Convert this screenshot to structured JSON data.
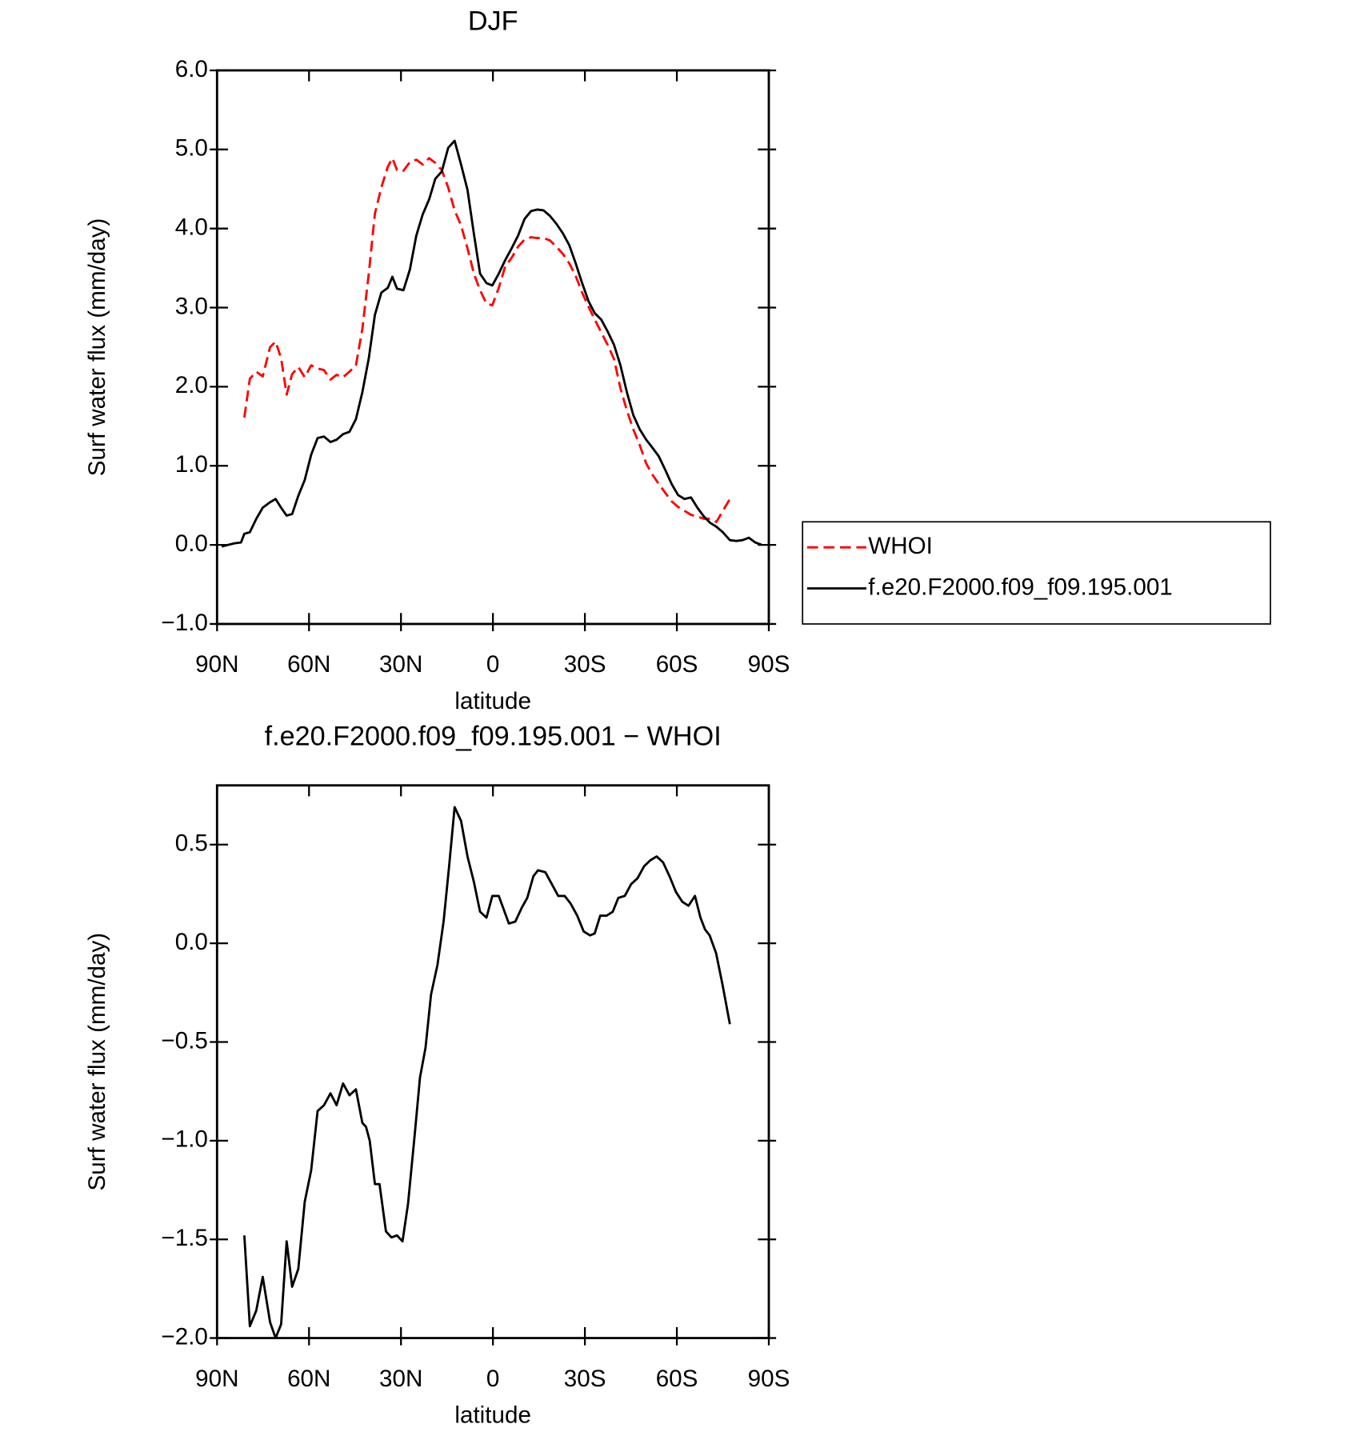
{
  "chart_data": [
    {
      "type": "line",
      "title": "DJF",
      "xlabel": "latitude",
      "ylabel": "Surf water flux (mm/day)",
      "xlim": [
        90,
        -90
      ],
      "xticks": [
        {
          "value": 90,
          "label": "90N"
        },
        {
          "value": 60,
          "label": "60N"
        },
        {
          "value": 30,
          "label": "30N"
        },
        0,
        {
          "value": -30,
          "label": "30S"
        },
        {
          "value": -60,
          "label": "60S"
        },
        {
          "value": -90,
          "label": "90S"
        }
      ],
      "ylim": [
        -1,
        6
      ],
      "yticks": [
        {
          "value": -1,
          "label": "−1.0"
        },
        {
          "value": 0,
          "label": "0.0"
        },
        {
          "value": 1,
          "label": "1.0"
        },
        {
          "value": 2,
          "label": "2.0"
        },
        {
          "value": 3,
          "label": "3.0"
        },
        {
          "value": 4,
          "label": "4.0"
        },
        {
          "value": 5,
          "label": "5.0"
        },
        {
          "value": 6,
          "label": "6.0"
        }
      ],
      "legend": "right",
      "series": [
        {
          "name": "WHOI",
          "color": "#ff0000",
          "dashed": true,
          "x": [
            81.1,
            79.3,
            77.2,
            75.1,
            72.7,
            70.9,
            69.1,
            67.3,
            65.5,
            63.5,
            61.4,
            59.3,
            57.2,
            55.1,
            53.0,
            51.0,
            48.9,
            46.8,
            44.7,
            42.6,
            40.5,
            38.5,
            36.4,
            34.3,
            32.8,
            31.3,
            29.2,
            27.1,
            25.0,
            22.9,
            20.8,
            18.8,
            16.7,
            14.6,
            12.5,
            10.4,
            8.3,
            6.2,
            4.2,
            2.1,
            0.2,
            -1.9,
            -4.0,
            -6.1,
            -8.2,
            -10.3,
            -12.4,
            -14.4,
            -16.5,
            -18.6,
            -20.7,
            -22.8,
            -24.9,
            -27.0,
            -29.1,
            -31.2,
            -33.2,
            -35.3,
            -37.4,
            -39.5,
            -41.6,
            -43.7,
            -45.8,
            -47.9,
            -50.0,
            -52.0,
            -54.1,
            -56.2,
            -58.3,
            -60.4,
            -62.5,
            -64.6,
            -66.7,
            -68.8,
            -70.8,
            -72.9,
            -75.0,
            -77.3
          ],
          "values": [
            1.61,
            2.1,
            2.19,
            2.13,
            2.5,
            2.57,
            2.36,
            1.9,
            2.16,
            2.25,
            2.12,
            2.27,
            2.23,
            2.21,
            2.09,
            2.15,
            2.12,
            2.19,
            2.27,
            2.73,
            3.43,
            4.19,
            4.52,
            4.78,
            4.89,
            4.74,
            4.73,
            4.84,
            4.87,
            4.81,
            4.89,
            4.83,
            4.74,
            4.52,
            4.23,
            4.04,
            3.75,
            3.43,
            3.22,
            3.05,
            3.03,
            3.25,
            3.52,
            3.63,
            3.77,
            3.86,
            3.89,
            3.88,
            3.88,
            3.85,
            3.77,
            3.68,
            3.56,
            3.4,
            3.19,
            3.01,
            2.85,
            2.69,
            2.53,
            2.35,
            1.98,
            1.7,
            1.46,
            1.26,
            1.03,
            0.89,
            0.77,
            0.66,
            0.55,
            0.48,
            0.43,
            0.38,
            0.36,
            0.33,
            0.33,
            0.29,
            0.43,
            0.58
          ]
        },
        {
          "name": "f.e20.F2000.f09_f09.195.001",
          "color": "#000000",
          "dashed": false,
          "x": [
            88.5,
            86.4,
            84.3,
            82.2,
            81.1,
            79.3,
            77.2,
            75.1,
            72.7,
            70.9,
            69.1,
            67.3,
            65.5,
            63.5,
            61.4,
            59.3,
            57.2,
            55.1,
            53.0,
            51.0,
            48.9,
            46.8,
            44.7,
            42.6,
            40.5,
            38.5,
            36.4,
            34.3,
            32.8,
            31.3,
            29.2,
            27.1,
            25.0,
            22.9,
            20.8,
            18.8,
            16.7,
            14.6,
            12.5,
            10.4,
            8.3,
            6.2,
            4.2,
            2.1,
            0.2,
            -1.9,
            -4.0,
            -6.1,
            -8.2,
            -10.3,
            -12.4,
            -14.4,
            -16.5,
            -18.6,
            -20.7,
            -22.8,
            -24.9,
            -27.0,
            -29.1,
            -31.2,
            -33.2,
            -35.3,
            -37.4,
            -39.5,
            -41.6,
            -43.7,
            -45.8,
            -47.9,
            -50.0,
            -52.0,
            -54.1,
            -56.2,
            -58.3,
            -60.4,
            -62.5,
            -64.6,
            -66.7,
            -68.8,
            -70.8,
            -72.9,
            -75.0,
            -77.3,
            -79.4,
            -81.4,
            -83.5,
            -85.6,
            -87.7
          ],
          "values": [
            -0.02,
            0.0,
            0.02,
            0.03,
            0.14,
            0.16,
            0.33,
            0.47,
            0.54,
            0.58,
            0.47,
            0.37,
            0.39,
            0.62,
            0.82,
            1.14,
            1.35,
            1.37,
            1.3,
            1.33,
            1.4,
            1.43,
            1.59,
            1.93,
            2.36,
            2.91,
            3.19,
            3.25,
            3.39,
            3.24,
            3.22,
            3.48,
            3.91,
            4.18,
            4.37,
            4.63,
            4.72,
            5.02,
            5.11,
            4.81,
            4.49,
            3.93,
            3.43,
            3.31,
            3.28,
            3.43,
            3.6,
            3.75,
            3.91,
            4.12,
            4.22,
            4.24,
            4.23,
            4.16,
            4.06,
            3.94,
            3.79,
            3.56,
            3.31,
            3.08,
            2.93,
            2.85,
            2.7,
            2.53,
            2.27,
            1.93,
            1.64,
            1.46,
            1.33,
            1.23,
            1.12,
            0.95,
            0.77,
            0.63,
            0.58,
            0.6,
            0.47,
            0.36,
            0.28,
            0.23,
            0.16,
            0.06,
            0.05,
            0.06,
            0.09,
            0.03,
            0.0
          ]
        }
      ]
    },
    {
      "type": "line",
      "title": "f.e20.F2000.f09_f09.195.001 − WHOI",
      "xlabel": "latitude",
      "ylabel": "Surf water flux (mm/day)",
      "xlim": [
        90,
        -90
      ],
      "xticks": [
        {
          "value": 90,
          "label": "90N"
        },
        {
          "value": 60,
          "label": "60N"
        },
        {
          "value": 30,
          "label": "30N"
        },
        0,
        {
          "value": -30,
          "label": "30S"
        },
        {
          "value": -60,
          "label": "60S"
        },
        {
          "value": -90,
          "label": "90S"
        }
      ],
      "ylim": [
        -2,
        0.8
      ],
      "yticks": [
        {
          "value": -2,
          "label": "−2.0"
        },
        {
          "value": -1.5,
          "label": "−1.5"
        },
        {
          "value": -1,
          "label": "−1.0"
        },
        {
          "value": -0.5,
          "label": "−0.5"
        },
        {
          "value": 0,
          "label": "0.0"
        },
        0.5
      ],
      "series": [
        {
          "color": "#000000",
          "dashed": false,
          "x": [
            81.1,
            79.3,
            77.2,
            75.1,
            72.7,
            70.9,
            69.1,
            67.3,
            65.5,
            63.5,
            61.4,
            59.3,
            57.2,
            55.1,
            53.0,
            51.0,
            48.9,
            46.8,
            44.7,
            42.6,
            41.4,
            40.2,
            38.5,
            37.0,
            34.9,
            33.1,
            31.3,
            29.5,
            27.7,
            25.4,
            23.8,
            22.0,
            20.2,
            18.1,
            16.1,
            14.3,
            12.5,
            10.4,
            8.3,
            6.2,
            4.2,
            2.1,
            0.2,
            -1.9,
            -5.2,
            -7.3,
            -9.4,
            -11.2,
            -13.2,
            -14.7,
            -17.1,
            -19.2,
            -21.3,
            -23.4,
            -25.4,
            -27.5,
            -29.6,
            -31.7,
            -33.2,
            -35.0,
            -37.1,
            -39.1,
            -40.9,
            -43.0,
            -45.1,
            -47.2,
            -49.3,
            -51.3,
            -53.4,
            -55.5,
            -57.6,
            -59.7,
            -61.8,
            -63.8,
            -65.9,
            -67.7,
            -69.2,
            -70.7,
            -72.8,
            -74.9,
            -77.3
          ],
          "values": [
            -1.48,
            -1.94,
            -1.86,
            -1.69,
            -1.92,
            -2.0,
            -1.93,
            -1.51,
            -1.74,
            -1.65,
            -1.31,
            -1.15,
            -0.85,
            -0.82,
            -0.76,
            -0.82,
            -0.71,
            -0.77,
            -0.74,
            -0.91,
            -0.93,
            -1.0,
            -1.22,
            -1.22,
            -1.46,
            -1.49,
            -1.48,
            -1.51,
            -1.32,
            -0.95,
            -0.68,
            -0.53,
            -0.26,
            -0.11,
            0.11,
            0.39,
            0.69,
            0.62,
            0.44,
            0.31,
            0.16,
            0.13,
            0.24,
            0.24,
            0.1,
            0.11,
            0.18,
            0.23,
            0.34,
            0.37,
            0.36,
            0.3,
            0.24,
            0.24,
            0.2,
            0.14,
            0.06,
            0.04,
            0.05,
            0.14,
            0.14,
            0.16,
            0.23,
            0.24,
            0.3,
            0.33,
            0.39,
            0.42,
            0.44,
            0.41,
            0.34,
            0.26,
            0.21,
            0.19,
            0.24,
            0.13,
            0.07,
            0.04,
            -0.05,
            -0.21,
            -0.41
          ]
        }
      ]
    }
  ]
}
